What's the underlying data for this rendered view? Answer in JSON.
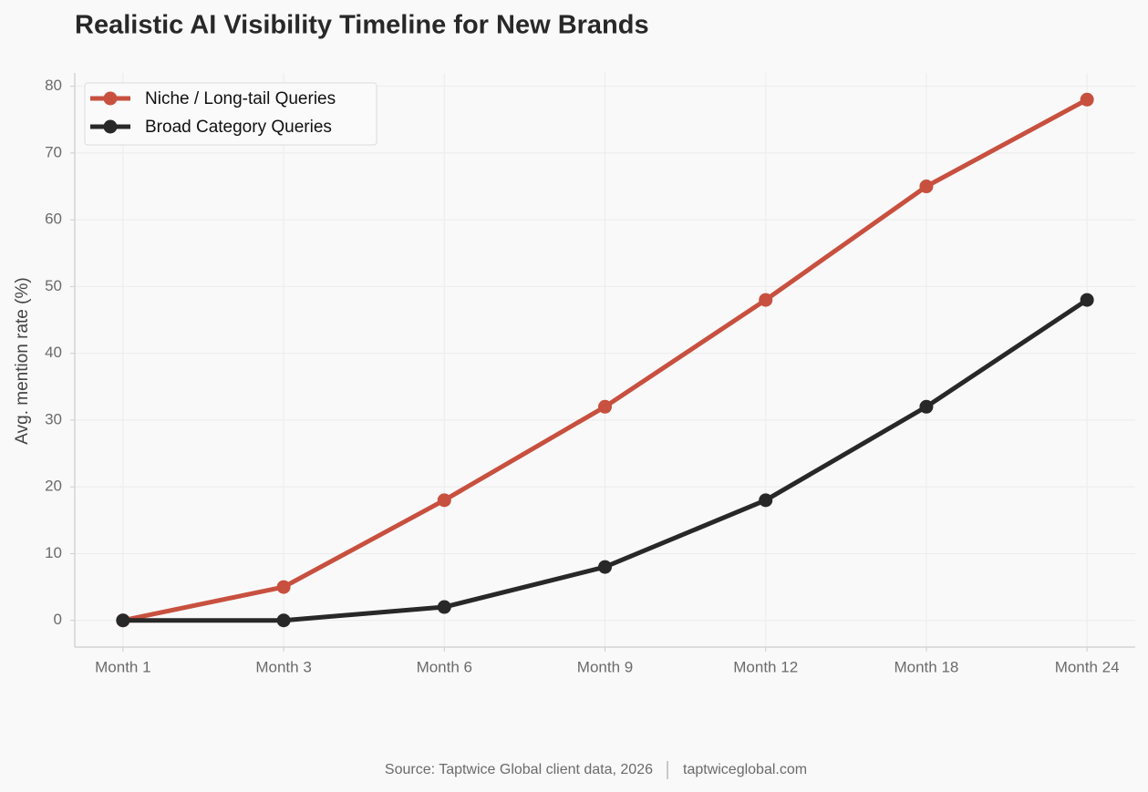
{
  "chart_data": {
    "type": "line",
    "title": "Realistic AI Visibility Timeline for New Brands",
    "y_label": "Avg. mention rate (%)",
    "categories": [
      "Month 1",
      "Month 3",
      "Month 6",
      "Month 9",
      "Month 12",
      "Month 18",
      "Month 24"
    ],
    "series": [
      {
        "name": "Niche / Long-tail Queries",
        "color": "#c8503f",
        "values": [
          0,
          5,
          18,
          32,
          48,
          65,
          78
        ]
      },
      {
        "name": "Broad Category Queries",
        "color": "#282828",
        "values": [
          0,
          0,
          2,
          8,
          18,
          32,
          48
        ]
      }
    ],
    "ylim": [
      -4,
      82
    ],
    "yticks": [
      0,
      10,
      20,
      30,
      40,
      50,
      60,
      70,
      80
    ],
    "grid": true,
    "legend": "upper left",
    "source": "Source: Taptwice Global client data, 2026",
    "website": "taptwiceglobal.com"
  }
}
